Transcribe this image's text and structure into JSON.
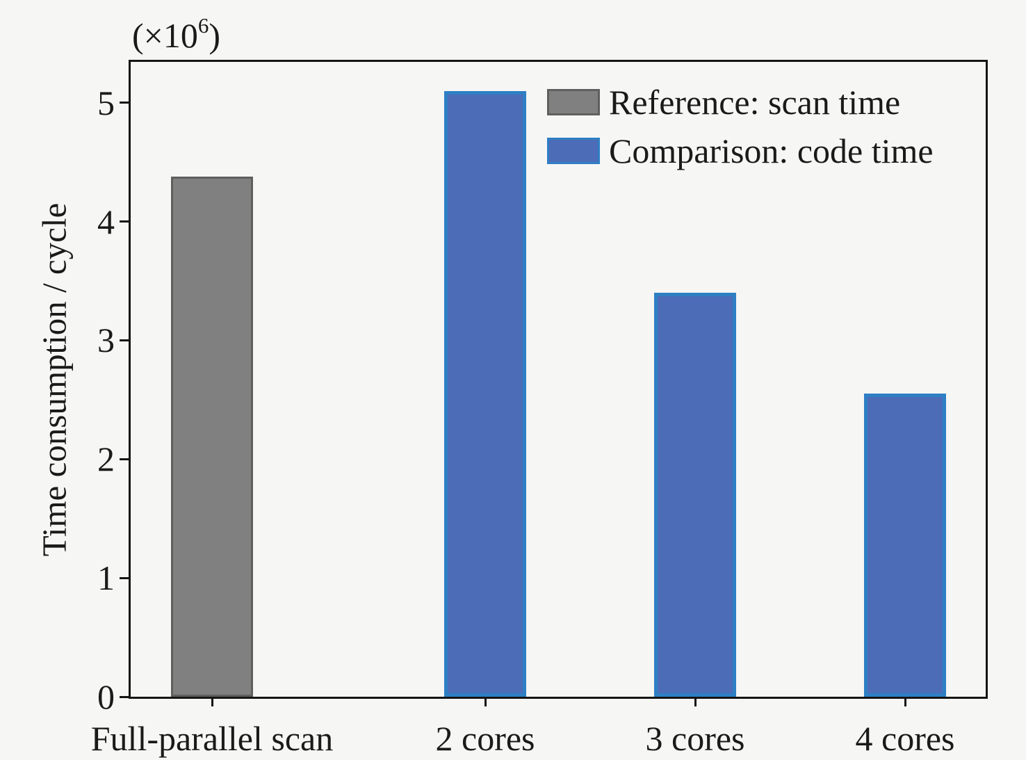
{
  "chart_data": {
    "type": "bar",
    "title_multiplier": {
      "prefix": "(×10",
      "exponent": "6",
      "suffix": ")"
    },
    "ylabel": "Time consumption / cycle",
    "xlabel": "",
    "ylim": [
      0,
      5.35
    ],
    "yticks": [
      0,
      1,
      2,
      3,
      4,
      5
    ],
    "grid": false,
    "categories": [
      "Full-parallel scan",
      "2 cores",
      "3 cores",
      "4 cores"
    ],
    "bars": [
      {
        "category": "Full-parallel scan",
        "series": "Reference: scan time",
        "value": 4.38,
        "color": "#808080",
        "edge_color": "#5f5f5f"
      },
      {
        "category": "2 cores",
        "series": "Comparison: code time",
        "value": 5.1,
        "color": "#4d6cb8",
        "edge_color": "#2e7fc4"
      },
      {
        "category": "3 cores",
        "series": "Comparison: code time",
        "value": 3.4,
        "color": "#4d6cb8",
        "edge_color": "#2e7fc4"
      },
      {
        "category": "4 cores",
        "series": "Comparison: code time",
        "value": 2.55,
        "color": "#4d6cb8",
        "edge_color": "#2e7fc4"
      }
    ],
    "legend": {
      "position": "upper-right",
      "items": [
        {
          "label": "Reference: scan time",
          "color": "#808080",
          "edge_color": "#5f5f5f"
        },
        {
          "label": "Comparison: code time",
          "color": "#4d6cb8",
          "edge_color": "#2e7fc4"
        }
      ]
    }
  },
  "colors": {
    "background": "#f6f6f4",
    "axis": "#151515",
    "text": "#1a1a1a"
  }
}
